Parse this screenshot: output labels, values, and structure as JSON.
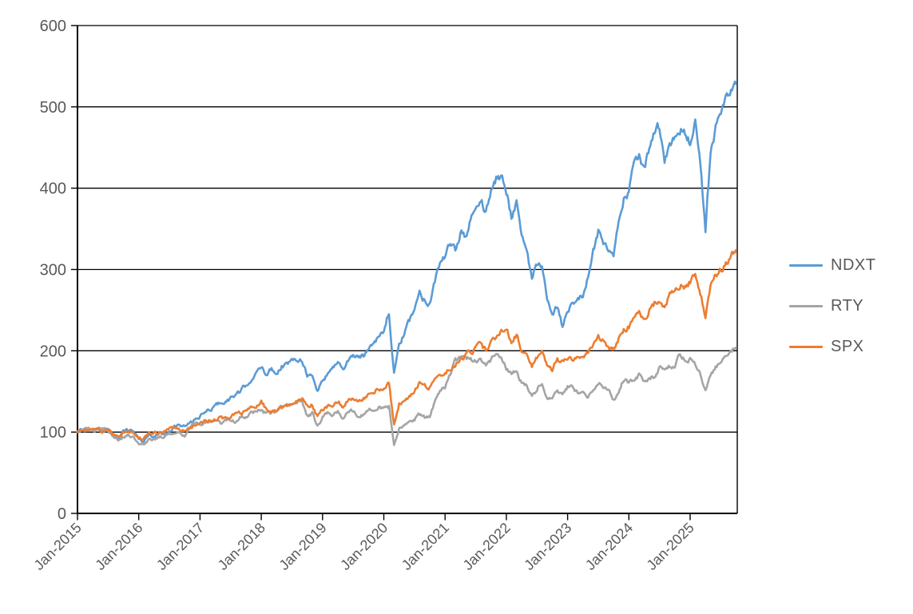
{
  "chart": {
    "background": "#ffffff",
    "axis_color": "#000000",
    "tick_label_color": "#595959",
    "legend_text_color": "#595959"
  },
  "chart_data": {
    "type": "line",
    "title": "",
    "xlabel": "",
    "ylabel": "",
    "x_start": "Jan-2015",
    "x_end": "Oct-2025",
    "x_interval": "1 month",
    "x_tick_labels": [
      "Jan-2015",
      "Jan-2016",
      "Jan-2017",
      "Jan-2018",
      "Jan-2019",
      "Jan-2020",
      "Jan-2021",
      "Jan-2022",
      "Jan-2023",
      "Jan-2024",
      "Jan-2025"
    ],
    "y_ticks": [
      0,
      100,
      200,
      300,
      400,
      500,
      600
    ],
    "ylim": [
      0,
      600
    ],
    "grid": "horizontal-on",
    "legend_position": "right",
    "draw_order": [
      "NDXT",
      "RTY",
      "SPX"
    ],
    "series": [
      {
        "name": "NDXT",
        "color": "#5B9BD5",
        "values": [
          100,
          103,
          102,
          103,
          104,
          102,
          103,
          95,
          93,
          101,
          103,
          101,
          92,
          88,
          97,
          95,
          99,
          97,
          103,
          106,
          108,
          107,
          110,
          115,
          119,
          124,
          128,
          132,
          137,
          137,
          142,
          146,
          150,
          158,
          165,
          171,
          180,
          172,
          178,
          173,
          181,
          184,
          187,
          191,
          189,
          171,
          168,
          150,
          164,
          172,
          179,
          188,
          176,
          188,
          195,
          191,
          194,
          203,
          212,
          218,
          224,
          248,
          172,
          205,
          221,
          236,
          253,
          271,
          262,
          259,
          287,
          306,
          316,
          330,
          323,
          346,
          341,
          361,
          373,
          386,
          371,
          396,
          411,
          416,
          396,
          366,
          386,
          341,
          321,
          291,
          306,
          301,
          261,
          241,
          256,
          231,
          251,
          259,
          268,
          264,
          291,
          321,
          346,
          331,
          321,
          316,
          356,
          386,
          396,
          426,
          441,
          421,
          451,
          468,
          476,
          431,
          451,
          461,
          471,
          470,
          456,
          481,
          431,
          350,
          441,
          476,
          491,
          506,
          518,
          528
        ]
      },
      {
        "name": "RTY",
        "color": "#A5A5A5",
        "values": [
          100,
          103,
          104,
          102,
          104,
          104,
          102,
          96,
          91,
          94,
          97,
          94,
          85,
          84,
          91,
          92,
          94,
          94,
          99,
          100,
          101,
          96,
          105,
          110,
          110,
          112,
          112,
          113,
          111,
          115,
          115,
          112,
          119,
          120,
          123,
          125,
          128,
          122,
          124,
          125,
          132,
          133,
          135,
          139,
          136,
          121,
          123,
          107,
          118,
          124,
          121,
          125,
          117,
          125,
          126,
          120,
          122,
          125,
          129,
          132,
          129,
          131,
          85,
          104,
          108,
          112,
          115,
          121,
          118,
          120,
          137,
          150,
          155,
          170,
          188,
          190,
          189,
          192,
          186,
          189,
          184,
          189,
          199,
          190,
          178,
          172,
          175,
          160,
          158,
          145,
          152,
          162,
          142,
          145,
          152,
          145,
          155,
          157,
          148,
          146,
          143,
          152,
          162,
          157,
          150,
          140,
          150,
          165,
          160,
          165,
          170,
          163,
          167,
          168,
          180,
          175,
          180,
          182,
          197,
          188,
          190,
          185,
          172,
          150,
          170,
          180,
          188,
          193,
          200,
          204
        ]
      },
      {
        "name": "SPX",
        "color": "#ED7D31",
        "values": [
          100,
          103,
          101,
          102,
          103,
          101,
          102,
          96,
          94,
          100,
          100,
          99,
          94,
          92,
          98,
          99,
          100,
          100,
          104,
          104,
          104,
          102,
          105,
          108,
          110,
          113,
          114,
          115,
          117,
          118,
          120,
          121,
          123,
          126,
          129,
          131,
          137,
          128,
          126,
          127,
          130,
          131,
          135,
          139,
          141,
          131,
          133,
          118,
          127,
          131,
          134,
          139,
          131,
          140,
          143,
          140,
          142,
          145,
          150,
          153,
          153,
          160,
          110,
          135,
          140,
          145,
          152,
          161,
          157,
          155,
          165,
          172,
          172,
          178,
          183,
          192,
          194,
          198,
          203,
          208,
          200,
          212,
          213,
          222,
          228,
          212,
          220,
          200,
          198,
          180,
          192,
          200,
          178,
          177,
          190,
          185,
          192,
          190,
          192,
          195,
          198,
          208,
          218,
          212,
          205,
          202,
          215,
          225,
          230,
          240,
          248,
          238,
          250,
          258,
          262,
          255,
          268,
          272,
          282,
          280,
          285,
          295,
          270,
          244,
          278,
          292,
          300,
          308,
          316,
          324
        ]
      }
    ]
  }
}
